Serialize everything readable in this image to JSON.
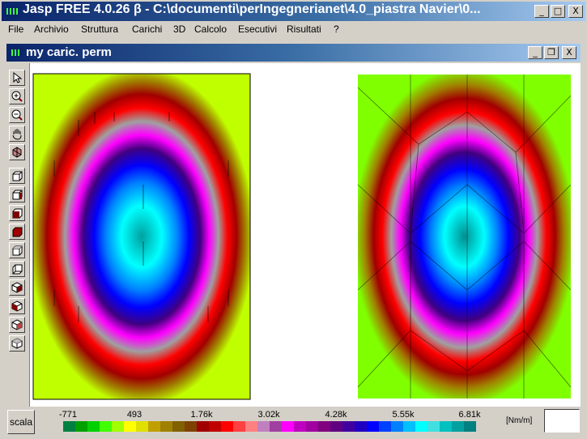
{
  "app": {
    "title": "Jasp FREE 4.0.26 β - C:\\documenti\\perIngegnerianet\\4.0_piastra Navier\\0...",
    "caption_buttons": {
      "minimize": "_",
      "restore": "□",
      "close": "X"
    }
  },
  "menu": {
    "items": [
      "File",
      "Archivio",
      "Struttura",
      "Carichi",
      "3D",
      "Calcolo",
      "Esecutivi",
      "Risultati",
      "?"
    ]
  },
  "child_window": {
    "title": "my caric. perm",
    "caption_buttons": {
      "minimize": "_",
      "restore": "❐",
      "close": "X"
    }
  },
  "toolbar": {
    "tools": [
      "pointer-icon",
      "zoom-in-icon",
      "zoom-out-icon",
      "pan-hand-icon",
      "rotate-icon",
      "view-cube-1-icon",
      "view-cube-2-icon",
      "view-cube-3-icon",
      "view-cube-4-icon",
      "view-cube-5-icon",
      "view-cube-6-icon",
      "view-cube-7-icon",
      "view-cube-8-icon",
      "view-cube-9-icon",
      "view-cube-10-icon"
    ]
  },
  "legend": {
    "scale_button": "scala",
    "tick_labels": [
      "-771",
      "493",
      "1.76k",
      "3.02k",
      "4.28k",
      "5.55k",
      "6.81k"
    ],
    "unit": "[Nm/m]",
    "value": "",
    "colors": [
      "#008040",
      "#00a000",
      "#00d000",
      "#40ff00",
      "#a0ff00",
      "#ffff00",
      "#e0e000",
      "#c0a000",
      "#a08000",
      "#806000",
      "#804000",
      "#a00000",
      "#c00000",
      "#ff0000",
      "#ff4040",
      "#ff8080",
      "#c080c0",
      "#a040a0",
      "#ff00ff",
      "#c000c0",
      "#a000a0",
      "#800080",
      "#600080",
      "#4000a0",
      "#2000c0",
      "#0000ff",
      "#0040ff",
      "#0080ff",
      "#00c0ff",
      "#00ffff",
      "#40e0e0",
      "#00c0c0",
      "#00a0a0",
      "#008080"
    ]
  },
  "plots": {
    "left": "contour plot (smooth mesh)",
    "right": "contour plot (triangulated mesh)"
  },
  "colors": {
    "title_dark": "#0a246a",
    "title_light": "#a6caf0",
    "face": "#d4d0c8"
  }
}
